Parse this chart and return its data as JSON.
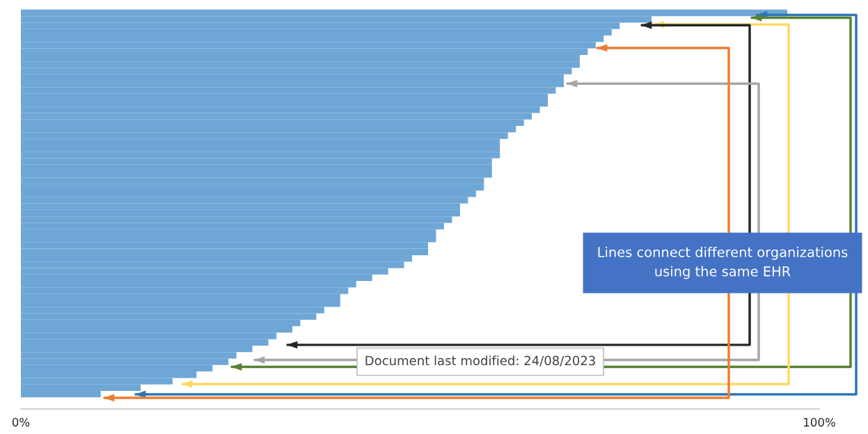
{
  "chart_data": {
    "type": "bar",
    "orientation": "horizontal",
    "categories": [
      null,
      null,
      null,
      null,
      null,
      null,
      null,
      null,
      null,
      null,
      null,
      null,
      null,
      null,
      null,
      null,
      null,
      null,
      null,
      null,
      null,
      null,
      null,
      null,
      null,
      null,
      null,
      null,
      null,
      null,
      null,
      null,
      null,
      null,
      null,
      null,
      null,
      null,
      null,
      null,
      null,
      null,
      null,
      null,
      null,
      null,
      null,
      null,
      null,
      null,
      null,
      null,
      null,
      null,
      null,
      null,
      null,
      null,
      null,
      null
    ],
    "values": [
      96,
      79,
      75,
      74,
      73,
      72,
      71,
      70,
      70,
      69,
      68,
      68,
      67,
      66,
      66,
      65,
      64,
      63,
      62,
      61,
      60,
      60,
      60,
      59,
      59,
      59,
      58,
      58,
      57,
      56,
      55,
      55,
      54,
      53,
      52,
      52,
      51,
      51,
      49,
      48,
      46,
      44,
      42,
      41,
      40,
      40,
      38,
      37,
      35,
      34,
      32,
      31,
      29,
      27,
      26,
      24,
      22,
      19,
      15,
      10
    ],
    "color": "#6ea6d6",
    "xlim": [
      0,
      100
    ],
    "xticks": [
      {
        "value": 0,
        "label": "0%"
      },
      {
        "value": 100,
        "label": "100%"
      }
    ],
    "grid": false,
    "legend": false,
    "annotations": [
      "Lines connect different organizations using the same EHR",
      "Document last modified: 24/08/2023"
    ]
  }
}
